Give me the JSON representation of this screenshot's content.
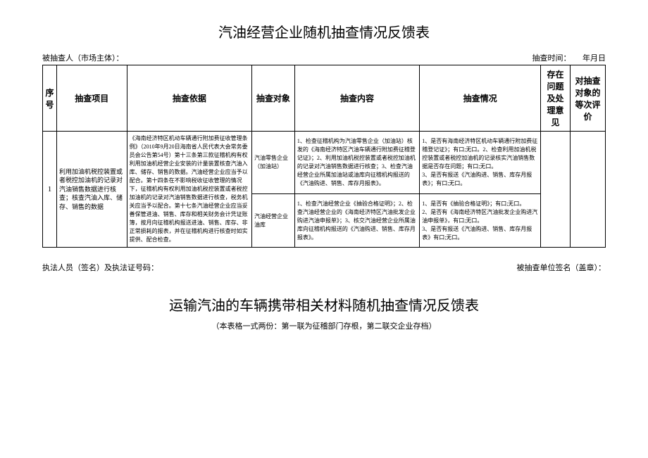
{
  "title1": "汽油经营企业随机抽查情况反馈表",
  "meta": {
    "left": "被抽查人（市场主体）：",
    "right_label": "抽查时间：",
    "right_date": "年月日"
  },
  "headers": {
    "seq": "序号",
    "item": "抽查项目",
    "basis": "抽查依据",
    "target": "抽查对象",
    "content": "抽查内容",
    "status": "抽查情况",
    "issue": "存在问题及处理意见",
    "eval": "对抽查对象的等次评价"
  },
  "row": {
    "seq": "1",
    "item": "利用加油机税控装置或者税控加油机的记录对汽油销售数据进行核查；核查汽油入库、储存、销售的数据",
    "basis": "《海南经济特区机动车辆通行附加费征收管理条例》（2010年9月20日海南省人民代表大会常务委员会公告第54号）第十三条第三款征稽机构有权利用加油机经营企业安装的计量装置核查汽油入库、储存、销售的数据。汽油经营企业应当予以配合。第十四条在不影响税收征收管理的情况下，征稽机构有权利用加油机税控装置或者税控加油机的记录对汽油销售数据进行核查，税务机关应当予以配合。第十七条汽油经营企业应当妥善保管进油、销售、库存和相关财务会计凭证账簿，按月向征稽机构报送进油、销售、库存、非正常损耗的报表，并在征稽机构进行核查时如实提供、配合检查。",
    "target1": "汽油零售企业（加油站）",
    "content1": "1、检查征稽机构为汽油零售企业（加油站）核发的《海南经济特区汽油车辆通行附加费征稽登记证》；2、利用加油机税控装置或者税控加油机的记录对汽油销售数据进行核查；3、检查汽油经营企业所属加油站或油库向征稽机构报送的《汽油购进、销售、库存月报表》。",
    "status1": "1、是否有海南经济特区机动车辆通行附加费征稽登记证》；有口;无口。2、检查利用加油机税控装置或者税控加油机的记录核实汽油销售数据是否存在问题；有口;无口。\n3、是否有报送《汽油购进、销售、库存月报表》；有口;无口。",
    "target2": "汽油经营企业油库",
    "content2": "1、检查汽油经营企业《抽验合格证明》；2、检查汽油经营企业的《海南经济特区汽油批发企业购进汽油申报单》；3、核交汽油经营企业所属油库向征稽机构报送的《汽油购进、销售、库存月报表》。",
    "status2": "1、是否有《抽验合格证明》；有口;无口。\n2、是否有《海南经济特区汽油批发企业购进汽油申报单》，有口;无口。\n3、是否有报送《汽油购进、销售、库存月报表》有口;无口。"
  },
  "signature": {
    "left": "执法人员（签名）及执法证号码：",
    "right": "被抽查单位签名（盖章）："
  },
  "title2": "运输汽油的车辆携带相关材料随机抽查情况反馈表",
  "note": "（本表格一式两份：第一联为征稽部门存根，第二联交企业存档）"
}
